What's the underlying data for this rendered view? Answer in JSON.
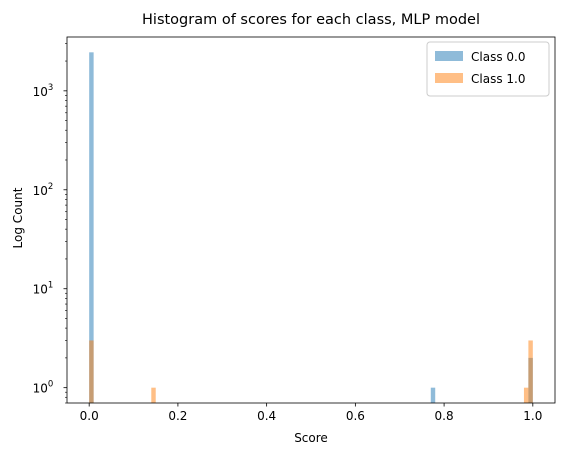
{
  "chart_data": {
    "type": "bar",
    "title": "Histogram of scores for each class, MLP model",
    "xlabel": "Score",
    "ylabel": "Log Count",
    "xlim": [
      -0.05,
      1.05
    ],
    "ylim": [
      0.7,
      3500
    ],
    "yscale": "log",
    "xticks": [
      "0.0",
      "0.2",
      "0.4",
      "0.6",
      "0.8",
      "1.0"
    ],
    "yticks": [
      {
        "value": 1,
        "base": "10",
        "exp": "0"
      },
      {
        "value": 10,
        "base": "10",
        "exp": "1"
      },
      {
        "value": 100,
        "base": "10",
        "exp": "2"
      },
      {
        "value": 1000,
        "base": "10",
        "exp": "3"
      }
    ],
    "bin_width": 0.01,
    "legend_position": "top-right",
    "series": [
      {
        "name": "Class 0.0",
        "color": "#1f77b4",
        "opacity": 0.5,
        "bins": [
          {
            "x": 0.0,
            "count": 2450
          },
          {
            "x": 0.77,
            "count": 1
          },
          {
            "x": 0.99,
            "count": 2
          }
        ]
      },
      {
        "name": "Class 1.0",
        "color": "#ff7f0e",
        "opacity": 0.5,
        "bins": [
          {
            "x": 0.0,
            "count": 3
          },
          {
            "x": 0.14,
            "count": 1
          },
          {
            "x": 0.98,
            "count": 1
          },
          {
            "x": 0.99,
            "count": 3
          }
        ]
      }
    ]
  }
}
